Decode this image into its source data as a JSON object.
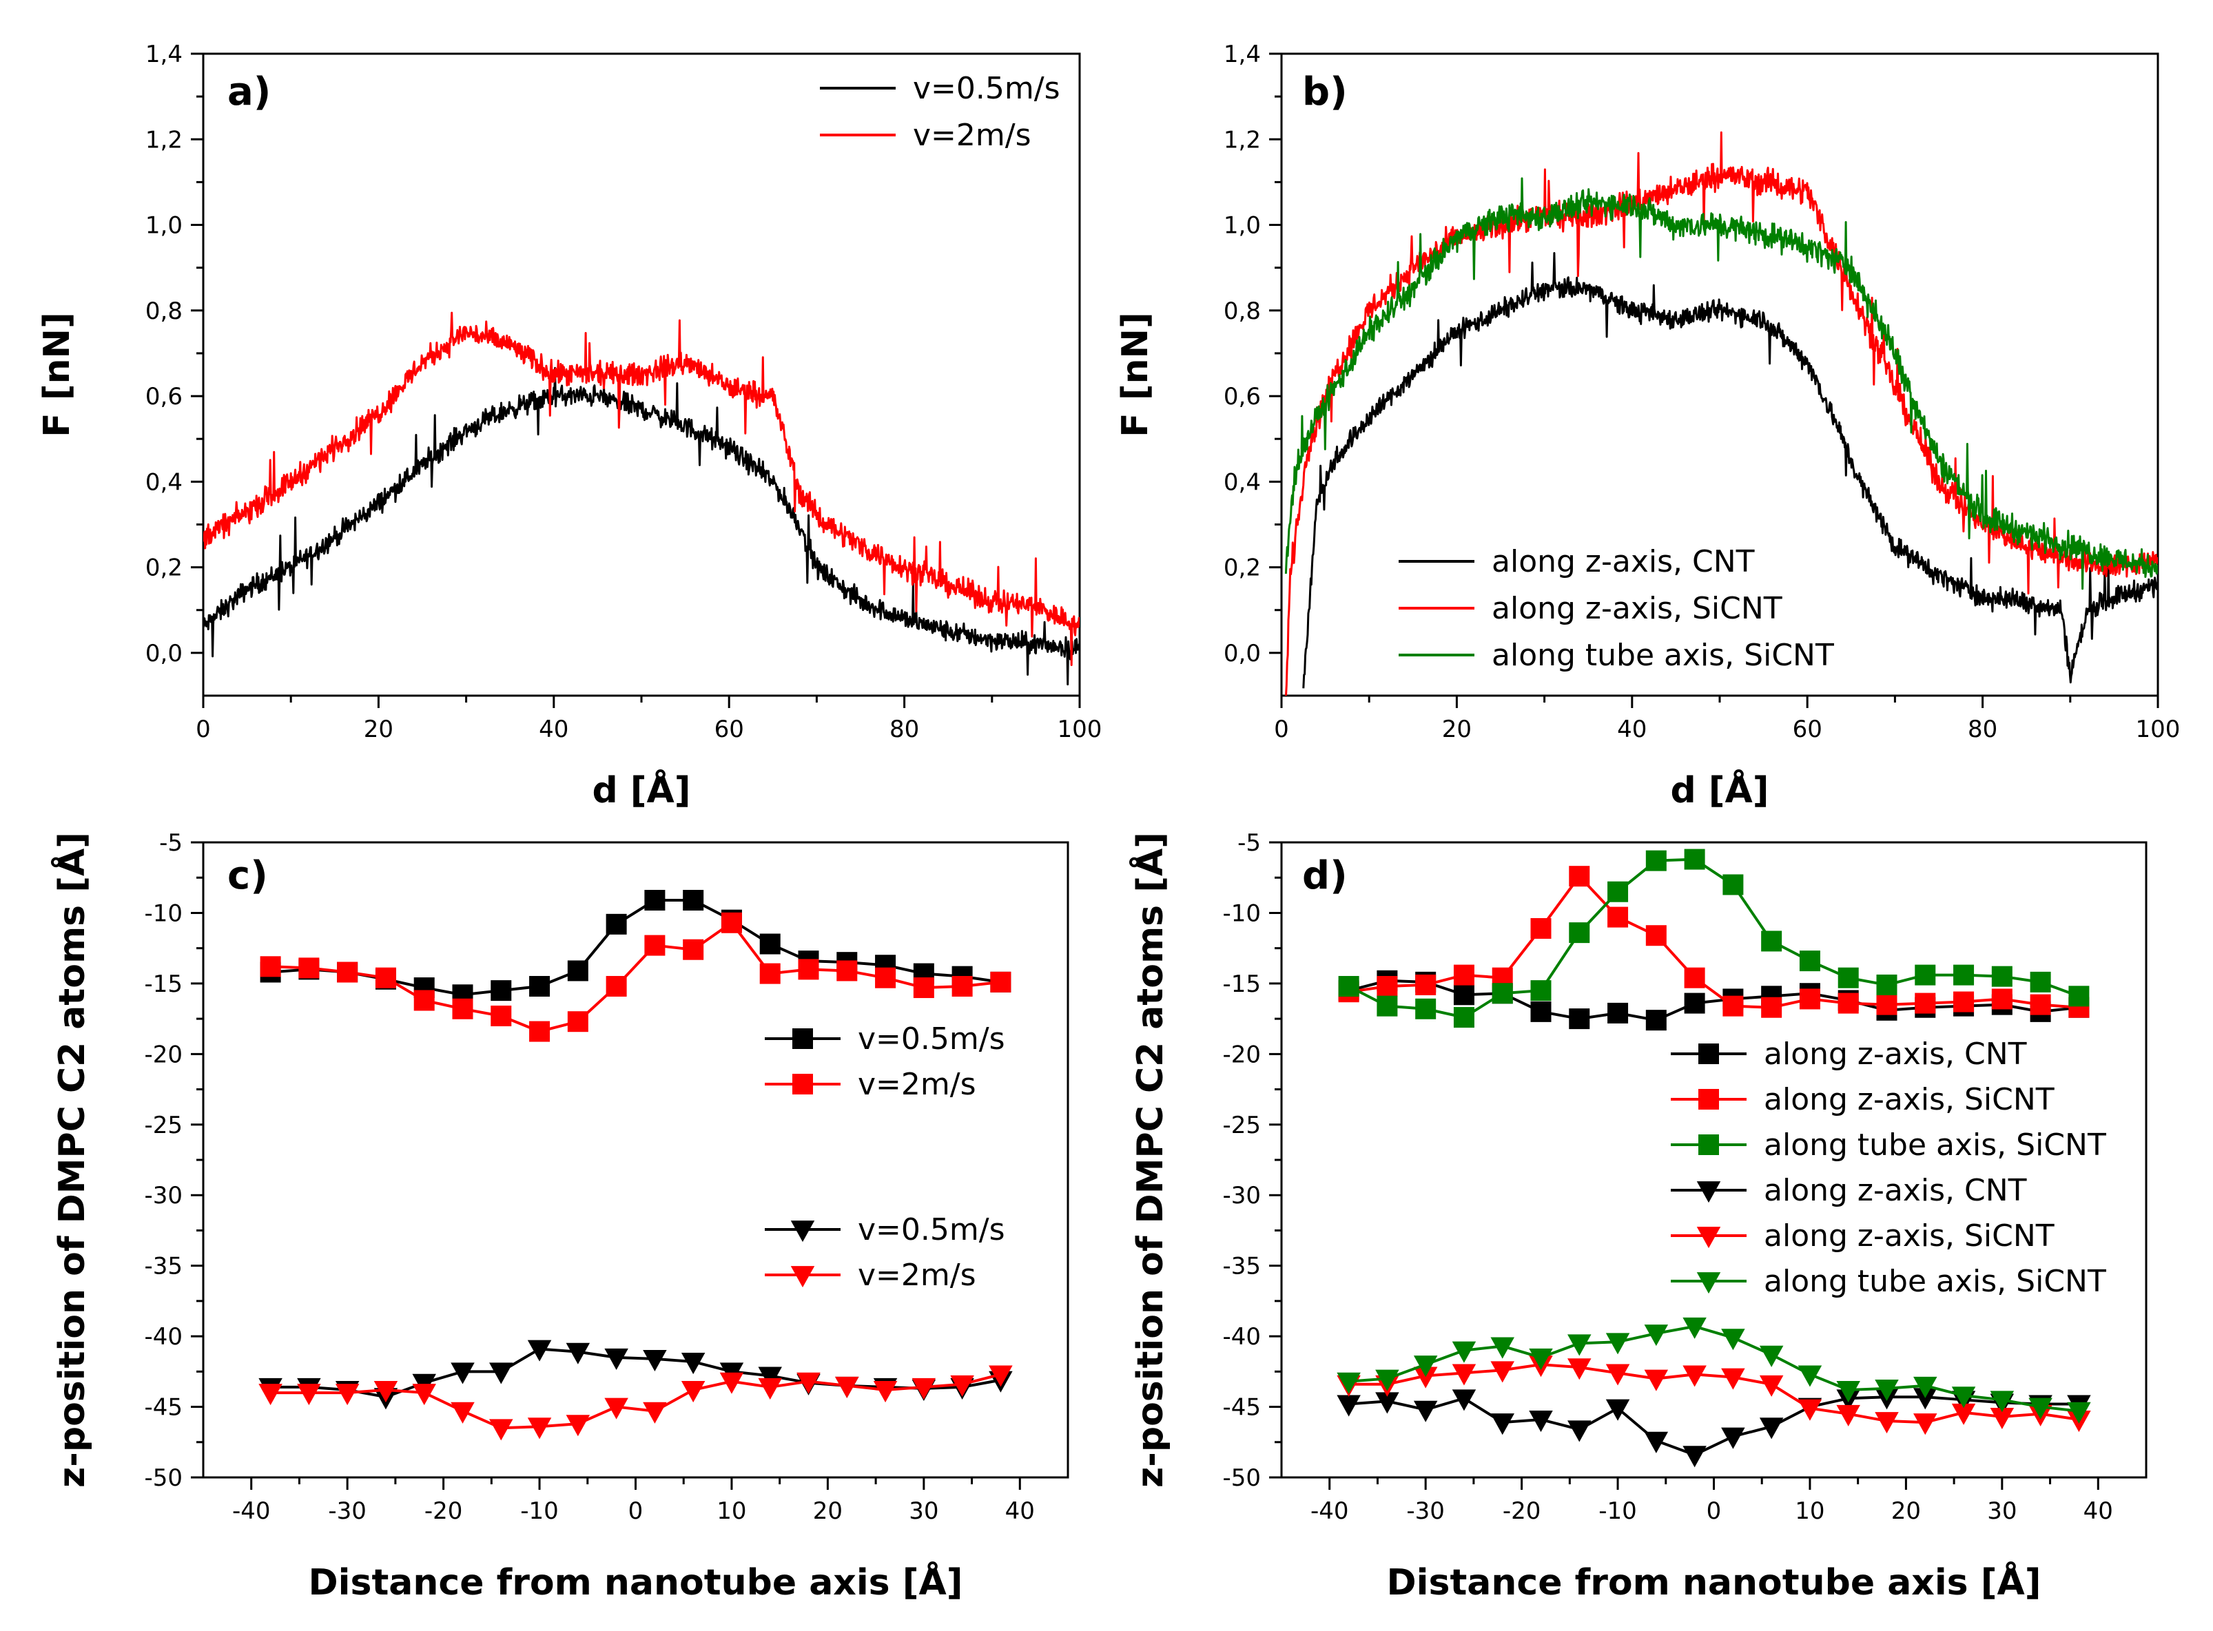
{
  "colors": {
    "black": "#000000",
    "red": "#ff0000",
    "green": "#008000"
  },
  "chart_data": [
    {
      "panel": "a)",
      "type": "line",
      "xlabel": "d [Å]",
      "ylabel": "F [nN]",
      "xlim": [
        0,
        100
      ],
      "ylim": [
        -0.1,
        1.4
      ],
      "xticks": [
        0,
        20,
        40,
        60,
        80,
        100
      ],
      "xtick_labels": [
        "0",
        "20",
        "40",
        "60",
        "80",
        "100"
      ],
      "yticks": [
        0.0,
        0.2,
        0.4,
        0.6,
        0.8,
        1.0,
        1.2,
        1.4
      ],
      "ytick_labels": [
        "0,0",
        "0,2",
        "0,4",
        "0,6",
        "0,8",
        "1,0",
        "1,2",
        "1,4"
      ],
      "legend_position": "top-right",
      "series": [
        {
          "name": "v=0.5m/s",
          "color": "#000000",
          "noise": 0.035,
          "x": [
            0,
            5,
            10,
            15,
            20,
            25,
            30,
            35,
            40,
            45,
            50,
            55,
            60,
            65,
            68,
            70,
            75,
            80,
            85,
            90,
            95,
            100
          ],
          "y": [
            0.06,
            0.15,
            0.2,
            0.27,
            0.35,
            0.44,
            0.52,
            0.57,
            0.6,
            0.6,
            0.57,
            0.53,
            0.48,
            0.4,
            0.3,
            0.2,
            0.12,
            0.08,
            0.05,
            0.03,
            0.02,
            0.01
          ]
        },
        {
          "name": "v=2m/s",
          "color": "#ff0000",
          "noise": 0.04,
          "x": [
            0,
            5,
            10,
            15,
            20,
            25,
            30,
            35,
            40,
            45,
            50,
            55,
            60,
            65,
            68,
            70,
            75,
            80,
            85,
            90,
            95,
            100
          ],
          "y": [
            0.27,
            0.33,
            0.4,
            0.48,
            0.56,
            0.68,
            0.75,
            0.72,
            0.65,
            0.65,
            0.65,
            0.68,
            0.62,
            0.6,
            0.38,
            0.32,
            0.25,
            0.2,
            0.16,
            0.12,
            0.11,
            0.06
          ]
        }
      ]
    },
    {
      "panel": "b)",
      "type": "line",
      "xlabel": "d [Å]",
      "ylabel": "F [nN]",
      "xlim": [
        0,
        100
      ],
      "ylim": [
        -0.1,
        1.4
      ],
      "xticks": [
        0,
        20,
        40,
        60,
        80,
        100
      ],
      "xtick_labels": [
        "0",
        "20",
        "40",
        "60",
        "80",
        "100"
      ],
      "yticks": [
        0.0,
        0.2,
        0.4,
        0.6,
        0.8,
        1.0,
        1.2,
        1.4
      ],
      "ytick_labels": [
        "0,0",
        "0,2",
        "0,4",
        "0,6",
        "0,8",
        "1,0",
        "1,2",
        "1,4"
      ],
      "legend_position": "bottom-center",
      "series": [
        {
          "name": "along z-axis, CNT",
          "color": "#000000",
          "noise": 0.035,
          "x": [
            2.5,
            4,
            6,
            10,
            15,
            20,
            25,
            30,
            35,
            40,
            45,
            50,
            55,
            60,
            63,
            66,
            70,
            75,
            80,
            85,
            89,
            90,
            92,
            95,
            100
          ],
          "y": [
            -0.08,
            0.35,
            0.45,
            0.55,
            0.65,
            0.75,
            0.8,
            0.85,
            0.85,
            0.8,
            0.78,
            0.8,
            0.78,
            0.68,
            0.55,
            0.4,
            0.25,
            0.18,
            0.13,
            0.12,
            0.1,
            -0.05,
            0.1,
            0.13,
            0.16
          ]
        },
        {
          "name": "along z-axis, SiCNT",
          "color": "#ff0000",
          "noise": 0.045,
          "x": [
            0.5,
            1,
            3,
            6,
            10,
            15,
            20,
            25,
            30,
            35,
            40,
            45,
            50,
            55,
            60,
            65,
            70,
            75,
            80,
            85,
            90,
            95,
            100
          ],
          "y": [
            -0.1,
            0.18,
            0.48,
            0.65,
            0.8,
            0.9,
            0.97,
            1.0,
            1.02,
            1.02,
            1.05,
            1.08,
            1.12,
            1.1,
            1.08,
            0.85,
            0.62,
            0.4,
            0.3,
            0.25,
            0.22,
            0.2,
            0.22
          ]
        },
        {
          "name": "along tube axis, SiCNT",
          "color": "#008000",
          "noise": 0.045,
          "x": [
            0.5,
            1.5,
            4,
            7,
            10,
            15,
            20,
            25,
            30,
            35,
            40,
            45,
            50,
            55,
            60,
            65,
            70,
            75,
            80,
            85,
            90,
            95,
            100
          ],
          "y": [
            0.2,
            0.42,
            0.55,
            0.65,
            0.75,
            0.85,
            0.97,
            1.02,
            1.02,
            1.05,
            1.05,
            1.0,
            1.0,
            0.98,
            0.95,
            0.9,
            0.7,
            0.45,
            0.32,
            0.28,
            0.25,
            0.22,
            0.2
          ]
        }
      ]
    },
    {
      "panel": "c)",
      "type": "line",
      "xlabel": "Distance from nanotube axis [Å]",
      "ylabel": "z-position of DMPC C2 atoms [Å]",
      "xlim": [
        -45,
        45
      ],
      "ylim": [
        -50,
        -5
      ],
      "xticks": [
        -40,
        -30,
        -20,
        -10,
        0,
        10,
        20,
        30,
        40
      ],
      "xtick_labels": [
        "-40",
        "-30",
        "-20",
        "-10",
        "0",
        "10",
        "20",
        "30",
        "40"
      ],
      "yticks": [
        -50,
        -45,
        -40,
        -35,
        -30,
        -25,
        -20,
        -15,
        -10,
        -5
      ],
      "ytick_labels": [
        "-50",
        "-45",
        "-40",
        "-35",
        "-30",
        "-25",
        "-20",
        "-15",
        "-10",
        "-5"
      ],
      "legend_position": "right",
      "series": [
        {
          "name": "v=0.5m/s",
          "color": "#000000",
          "marker": "square",
          "x": [
            -38,
            -34,
            -30,
            -26,
            -22,
            -18,
            -14,
            -10,
            -6,
            -2,
            2,
            6,
            10,
            14,
            18,
            22,
            26,
            30,
            34,
            38
          ],
          "y": [
            -14.2,
            -14.0,
            -14.2,
            -14.7,
            -15.3,
            -15.8,
            -15.5,
            -15.2,
            -14.1,
            -10.8,
            -9.1,
            -9.1,
            -10.5,
            -12.2,
            -13.4,
            -13.5,
            -13.7,
            -14.3,
            -14.5,
            -14.9
          ]
        },
        {
          "name": "v=2m/s",
          "color": "#ff0000",
          "marker": "square",
          "x": [
            -38,
            -34,
            -30,
            -26,
            -22,
            -18,
            -14,
            -10,
            -6,
            -2,
            2,
            6,
            10,
            14,
            18,
            22,
            26,
            30,
            34,
            38
          ],
          "y": [
            -13.8,
            -13.9,
            -14.2,
            -14.6,
            -16.2,
            -16.8,
            -17.3,
            -18.4,
            -17.7,
            -15.2,
            -12.3,
            -12.6,
            -10.7,
            -14.3,
            -14.0,
            -14.1,
            -14.6,
            -15.3,
            -15.2,
            -14.9
          ]
        },
        {
          "name": "v=0.5m/s",
          "color": "#000000",
          "marker": "triangle-down",
          "x": [
            -38,
            -34,
            -30,
            -26,
            -22,
            -18,
            -14,
            -10,
            -6,
            -2,
            2,
            6,
            10,
            14,
            18,
            22,
            26,
            30,
            34,
            38
          ],
          "y": [
            -43.6,
            -43.6,
            -43.8,
            -44.3,
            -43.3,
            -42.5,
            -42.5,
            -40.9,
            -41.1,
            -41.5,
            -41.6,
            -41.8,
            -42.5,
            -42.8,
            -43.3,
            -43.5,
            -43.6,
            -43.7,
            -43.6,
            -43.1
          ]
        },
        {
          "name": "v=2m/s",
          "color": "#ff0000",
          "marker": "triangle-down",
          "x": [
            -38,
            -34,
            -30,
            -26,
            -22,
            -18,
            -14,
            -10,
            -6,
            -2,
            2,
            6,
            10,
            14,
            18,
            22,
            26,
            30,
            34,
            38
          ],
          "y": [
            -44.0,
            -44.0,
            -44.0,
            -43.8,
            -44.0,
            -45.3,
            -46.5,
            -46.4,
            -46.2,
            -45.0,
            -45.3,
            -43.8,
            -43.2,
            -43.6,
            -43.2,
            -43.5,
            -43.8,
            -43.6,
            -43.4,
            -42.7
          ]
        }
      ]
    },
    {
      "panel": "d)",
      "type": "line",
      "xlabel": "Distance from nanotube axis [Å]",
      "ylabel": "z-position of DMPC C2 atoms [Å]",
      "xlim": [
        -45,
        45
      ],
      "ylim": [
        -50,
        -5
      ],
      "xticks": [
        -40,
        -30,
        -20,
        -10,
        0,
        10,
        20,
        30,
        40
      ],
      "xtick_labels": [
        "-40",
        "-30",
        "-20",
        "-10",
        "0",
        "10",
        "20",
        "30",
        "40"
      ],
      "yticks": [
        -50,
        -45,
        -40,
        -35,
        -30,
        -25,
        -20,
        -15,
        -10,
        -5
      ],
      "ytick_labels": [
        "-50",
        "-45",
        "-40",
        "-35",
        "-30",
        "-25",
        "-20",
        "-15",
        "-10",
        "-5"
      ],
      "legend_position": "right",
      "series": [
        {
          "name": "along z-axis, CNT",
          "color": "#000000",
          "marker": "square",
          "x": [
            -38,
            -34,
            -30,
            -26,
            -22,
            -18,
            -14,
            -10,
            -6,
            -2,
            2,
            6,
            10,
            14,
            18,
            22,
            26,
            30,
            34,
            38
          ],
          "y": [
            -15.5,
            -14.8,
            -14.9,
            -15.8,
            -15.7,
            -17.0,
            -17.5,
            -17.1,
            -17.6,
            -16.4,
            -16.1,
            -15.9,
            -15.7,
            -16.2,
            -16.9,
            -16.7,
            -16.6,
            -16.5,
            -17.0,
            -16.7
          ]
        },
        {
          "name": "along z-axis, SiCNT",
          "color": "#ff0000",
          "marker": "square",
          "x": [
            -38,
            -34,
            -30,
            -26,
            -22,
            -18,
            -14,
            -10,
            -6,
            -2,
            2,
            6,
            10,
            14,
            18,
            22,
            26,
            30,
            34,
            38
          ],
          "y": [
            -15.6,
            -15.2,
            -15.1,
            -14.4,
            -14.6,
            -11.1,
            -7.4,
            -10.3,
            -11.6,
            -14.6,
            -16.6,
            -16.7,
            -16.1,
            -16.4,
            -16.5,
            -16.4,
            -16.3,
            -16.1,
            -16.5,
            -16.7
          ]
        },
        {
          "name": "along tube axis, SiCNT",
          "color": "#008000",
          "marker": "square",
          "x": [
            -38,
            -34,
            -30,
            -26,
            -22,
            -18,
            -14,
            -10,
            -6,
            -2,
            2,
            6,
            10,
            14,
            18,
            22,
            26,
            30,
            34,
            38
          ],
          "y": [
            -15.2,
            -16.6,
            -16.8,
            -17.4,
            -15.7,
            -15.5,
            -11.4,
            -8.5,
            -6.3,
            -6.2,
            -8.0,
            -12.0,
            -13.4,
            -14.6,
            -15.1,
            -14.4,
            -14.4,
            -14.5,
            -14.9,
            -15.9
          ]
        },
        {
          "name": "along z-axis, CNT",
          "color": "#000000",
          "marker": "triangle-down",
          "x": [
            -38,
            -34,
            -30,
            -26,
            -22,
            -18,
            -14,
            -10,
            -6,
            -2,
            2,
            6,
            10,
            14,
            18,
            22,
            26,
            30,
            34,
            38
          ],
          "y": [
            -44.8,
            -44.6,
            -45.2,
            -44.4,
            -46.1,
            -45.9,
            -46.6,
            -45.1,
            -47.4,
            -48.4,
            -47.1,
            -46.4,
            -45.0,
            -44.4,
            -44.3,
            -44.3,
            -44.5,
            -44.7,
            -44.8,
            -44.8
          ]
        },
        {
          "name": "along z-axis, SiCNT",
          "color": "#ff0000",
          "marker": "triangle-down",
          "x": [
            -38,
            -34,
            -30,
            -26,
            -22,
            -18,
            -14,
            -10,
            -6,
            -2,
            2,
            6,
            10,
            14,
            18,
            22,
            26,
            30,
            34,
            38
          ],
          "y": [
            -43.4,
            -43.4,
            -42.8,
            -42.6,
            -42.4,
            -42.0,
            -42.2,
            -42.6,
            -43.0,
            -42.7,
            -42.9,
            -43.4,
            -45.1,
            -45.5,
            -46.0,
            -46.1,
            -45.4,
            -45.7,
            -45.5,
            -45.9
          ]
        },
        {
          "name": "along tube axis, SiCNT",
          "color": "#008000",
          "marker": "triangle-down",
          "x": [
            -38,
            -34,
            -30,
            -26,
            -22,
            -18,
            -14,
            -10,
            -6,
            -2,
            2,
            6,
            10,
            14,
            18,
            22,
            26,
            30,
            34,
            38
          ],
          "y": [
            -43.2,
            -43.0,
            -42.0,
            -41.0,
            -40.7,
            -41.5,
            -40.5,
            -40.4,
            -39.8,
            -39.3,
            -40.1,
            -41.3,
            -42.7,
            -43.8,
            -43.7,
            -43.5,
            -44.2,
            -44.5,
            -45.0,
            -45.3
          ]
        }
      ]
    }
  ]
}
